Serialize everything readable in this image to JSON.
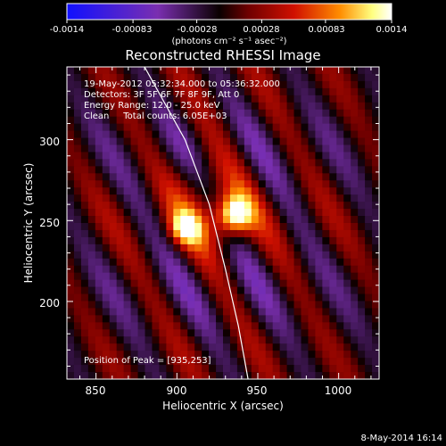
{
  "chart_data": {
    "type": "heatmap",
    "title": "Reconstructed RHESSI Image",
    "colorbar": {
      "tick_labels": [
        "-0.0014",
        "-0.00083",
        "-0.00028",
        "0.00028",
        "0.00083",
        "0.0014"
      ],
      "tick_values": [
        -0.0014,
        -0.00083,
        -0.00028,
        0.00028,
        0.00083,
        0.0014
      ],
      "range": [
        -0.0014,
        0.0014
      ],
      "unit_label": "(photons cm⁻² s⁻¹ asec⁻²)",
      "colors": [
        "#1010ff",
        "#7a2fb0",
        "#0a0000",
        "#d01000",
        "#ff8c00",
        "#ffff80",
        "#ffffff"
      ]
    },
    "xlabel": "Heliocentric X (arcsec)",
    "ylabel": "Heliocentric Y (arcsec)",
    "xlim": [
      832,
      1025
    ],
    "ylim": [
      152,
      345
    ],
    "xticks": [
      850,
      900,
      950,
      1000
    ],
    "yticks": [
      200,
      250,
      300
    ],
    "annotations": [
      "19-May-2012 05:32:34.000 to 05:36:32.000",
      "Detectors: 3F 5F 6F 7F 8F 9F, Att 0",
      "Energy Range: 12.0 - 25.0 keV",
      "Clean     Total counts: 6.05E+03"
    ],
    "peak_label": "Position of Peak = [935,253]",
    "peak": {
      "x": 935,
      "y": 253,
      "value": 0.0014
    },
    "secondary_peak": {
      "x": 905,
      "y": 245,
      "value": 0.0011
    },
    "limb_curve": [
      [
        880,
        345
      ],
      [
        905,
        300
      ],
      [
        920,
        260
      ],
      [
        930,
        220
      ],
      [
        938,
        185
      ],
      [
        944,
        152
      ]
    ],
    "grid_size": 44
  },
  "footer": {
    "date_stamp": "8-May-2014 16:14"
  }
}
